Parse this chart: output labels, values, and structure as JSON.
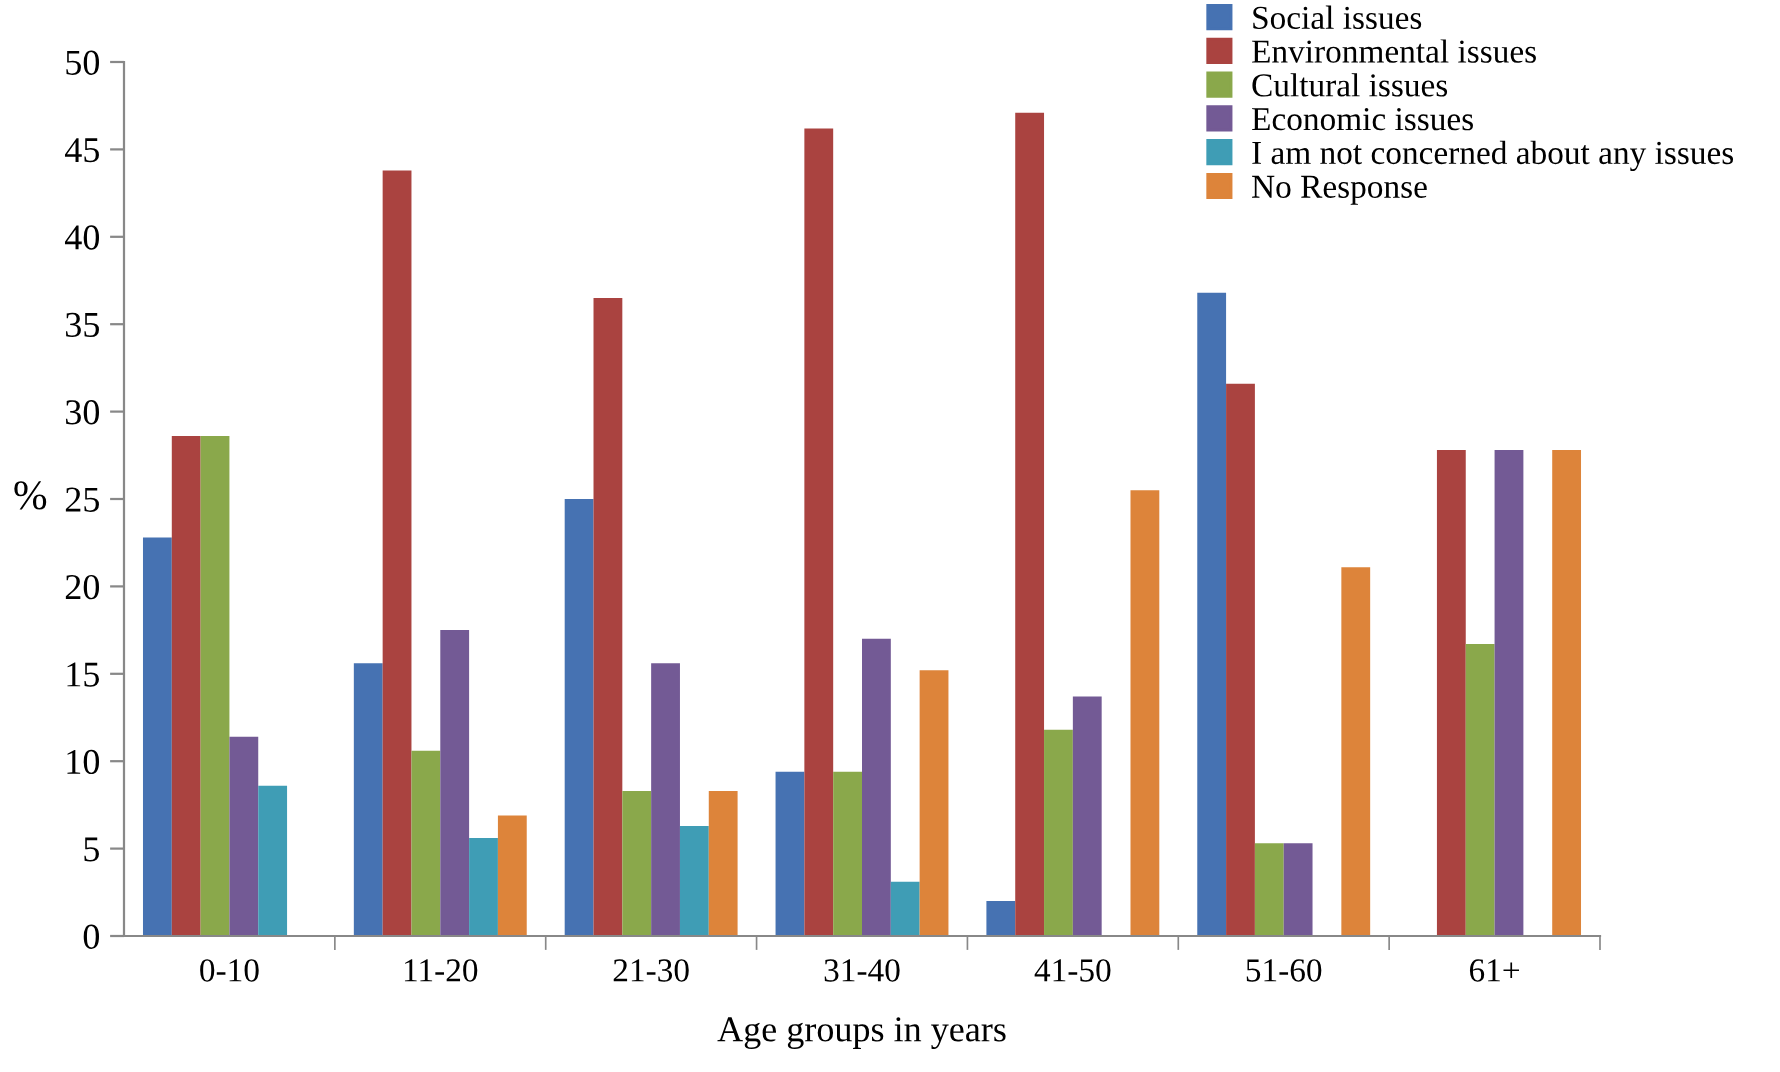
{
  "chart_data": {
    "type": "bar",
    "xlabel": "Age groups in years",
    "ylabel": "%",
    "categories": [
      "0-10",
      "11-20",
      "21-30",
      "31-40",
      "41-50",
      "51-60",
      "61+"
    ],
    "series": [
      {
        "name": "Social issues",
        "color": "#4672b2",
        "values": [
          22.8,
          15.6,
          25.0,
          9.4,
          2.0,
          36.8,
          0
        ]
      },
      {
        "name": "Environmental issues",
        "color": "#aa4340",
        "values": [
          28.6,
          43.8,
          36.5,
          46.2,
          47.1,
          31.6,
          27.8
        ]
      },
      {
        "name": "Cultural issues",
        "color": "#8aa84b",
        "values": [
          28.6,
          10.6,
          8.3,
          9.4,
          11.8,
          5.3,
          16.7
        ]
      },
      {
        "name": "Economic issues",
        "color": "#735a95",
        "values": [
          11.4,
          17.5,
          15.6,
          17.0,
          13.7,
          5.3,
          27.8
        ]
      },
      {
        "name": "I am not concerned about any issues",
        "color": "#3f9db5",
        "values": [
          8.6,
          5.6,
          6.3,
          3.1,
          0,
          0,
          0
        ]
      },
      {
        "name": "No Response",
        "color": "#dd843a",
        "values": [
          0,
          6.9,
          8.3,
          15.2,
          25.5,
          21.1,
          27.8
        ]
      }
    ],
    "ylim": [
      0,
      50
    ],
    "yticks": [
      0,
      5,
      10,
      15,
      20,
      25,
      30,
      35,
      40,
      45,
      50
    ],
    "grid": false,
    "legend": "top right"
  }
}
